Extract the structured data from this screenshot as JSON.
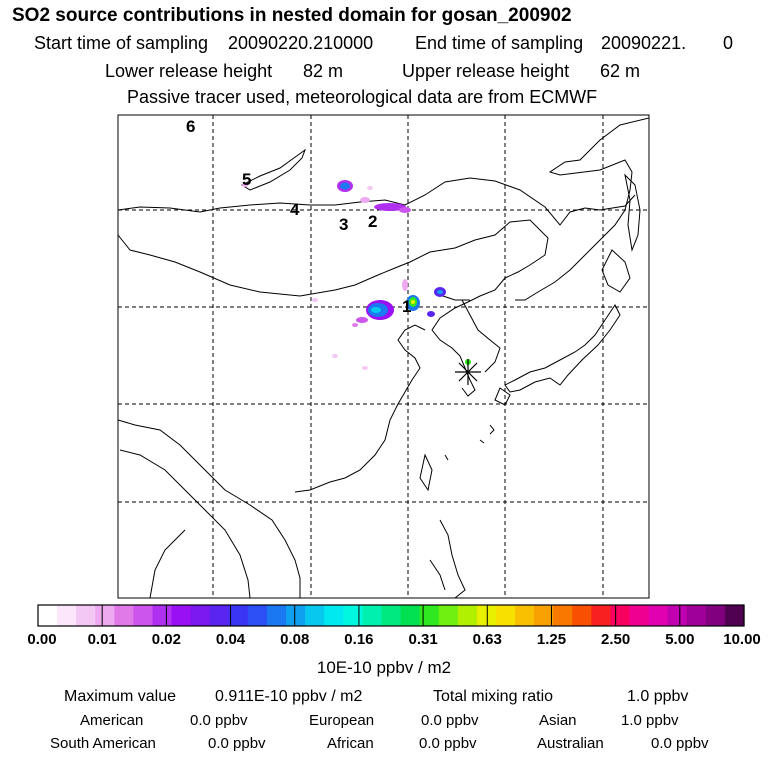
{
  "chart_data": {
    "type": "heatmap",
    "title": "SO2 source contributions in nested domain for gosan_200902",
    "start_label": "Start time of sampling",
    "start_value": "20090220.210000",
    "end_label": "End time of sampling",
    "end_value": "20090221.",
    "end_value2": "0",
    "lower_label": "Lower release height",
    "lower_value": "82 m",
    "upper_label": "Upper release height",
    "upper_value": "62 m",
    "tracer_note": "Passive tracer used, meteorological data are from ECMWF",
    "source_labels": [
      "1",
      "2",
      "3",
      "4",
      "5",
      "6"
    ],
    "colorbar": {
      "ticks": [
        "0.00",
        "0.01",
        "0.02",
        "0.04",
        "0.08",
        "0.16",
        "0.31",
        "0.63",
        "1.25",
        "2.50",
        "5.00",
        "10.00"
      ],
      "unit": "10E-10 ppbv / m2",
      "colors": [
        "#ffffff",
        "#fbe6fb",
        "#f4c8f4",
        "#eeaaee",
        "#e07ae8",
        "#cc55ee",
        "#b030f0",
        "#9a10f5",
        "#7a18f0",
        "#5a25f0",
        "#3a35f5",
        "#2a50f5",
        "#1a78f0",
        "#10a0f0",
        "#08c8f0",
        "#00e8f0",
        "#00f8e0",
        "#00f0b0",
        "#00e880",
        "#00e050",
        "#30e820",
        "#70f010",
        "#b0f000",
        "#e8f000",
        "#f8e000",
        "#f8c000",
        "#f8a000",
        "#f87800",
        "#f85000",
        "#f82020",
        "#f80060",
        "#f00090",
        "#e000b0",
        "#c000b0",
        "#a00098",
        "#800080",
        "#500050"
      ]
    },
    "footer": {
      "max_label": "Maximum value",
      "max_value": "0.911E-10 ppbv / m2",
      "total_label": "Total mixing ratio",
      "total_value": "1.0 ppbv",
      "regions": [
        {
          "name": "American",
          "value": "0.0 ppbv"
        },
        {
          "name": "European",
          "value": "0.0 ppbv"
        },
        {
          "name": "Asian",
          "value": "1.0 ppbv"
        },
        {
          "name": "South American",
          "value": "0.0 ppbv"
        },
        {
          "name": "African",
          "value": "0.0 ppbv"
        },
        {
          "name": "Australian",
          "value": "0.0 ppbv"
        }
      ]
    }
  }
}
